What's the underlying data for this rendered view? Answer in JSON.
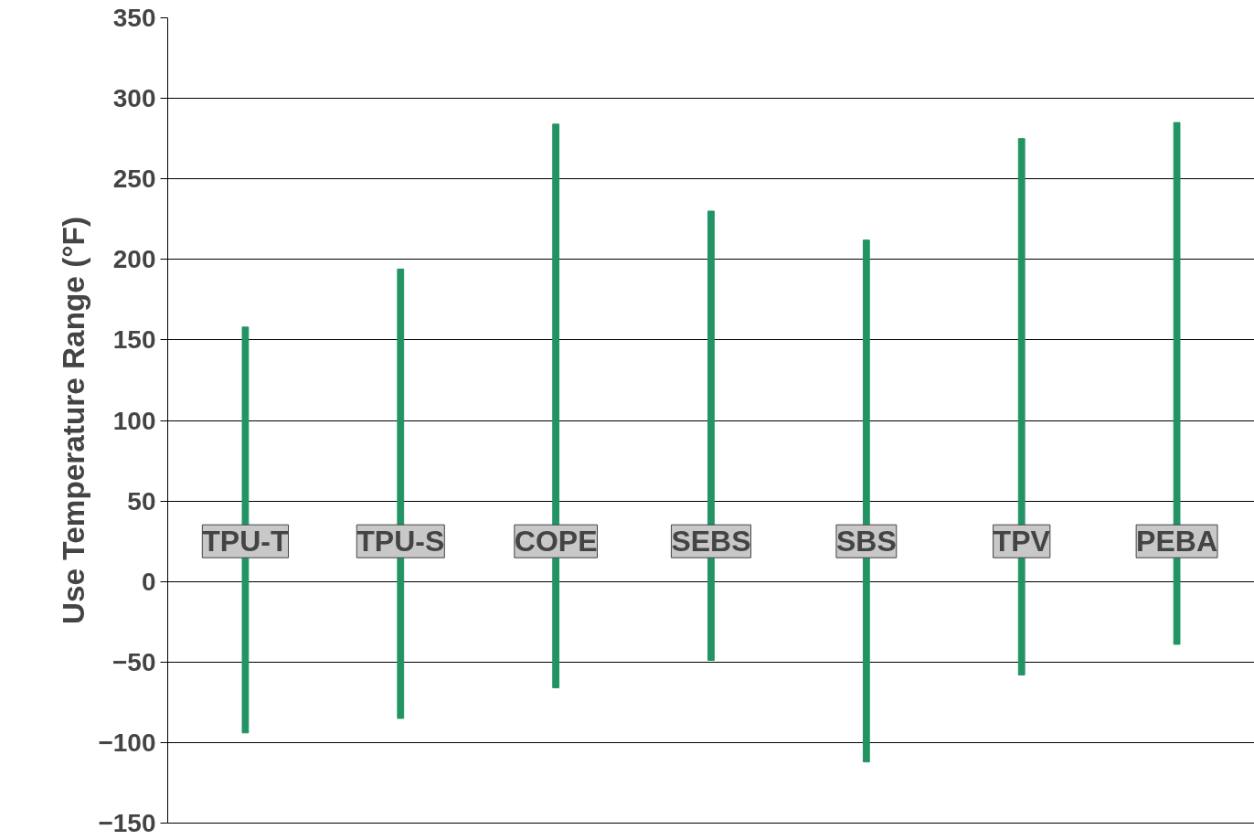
{
  "chart_data": {
    "type": "bar",
    "ylabel": "Use Temperature Range (°F)",
    "categories": [
      "TPU-T",
      "TPU-S",
      "COPE",
      "SEBS",
      "SBS",
      "TPV",
      "PEBA"
    ],
    "base": [
      -94,
      -85,
      -66,
      -49,
      -112,
      -58,
      -39
    ],
    "values": [
      252,
      279,
      350,
      279,
      324,
      333,
      324
    ],
    "color": "#229464",
    "ylim": [
      -150,
      350
    ],
    "yticks": [
      -150,
      -100,
      -50,
      0,
      50,
      100,
      150,
      200,
      250,
      300,
      350
    ],
    "grid": "y"
  }
}
